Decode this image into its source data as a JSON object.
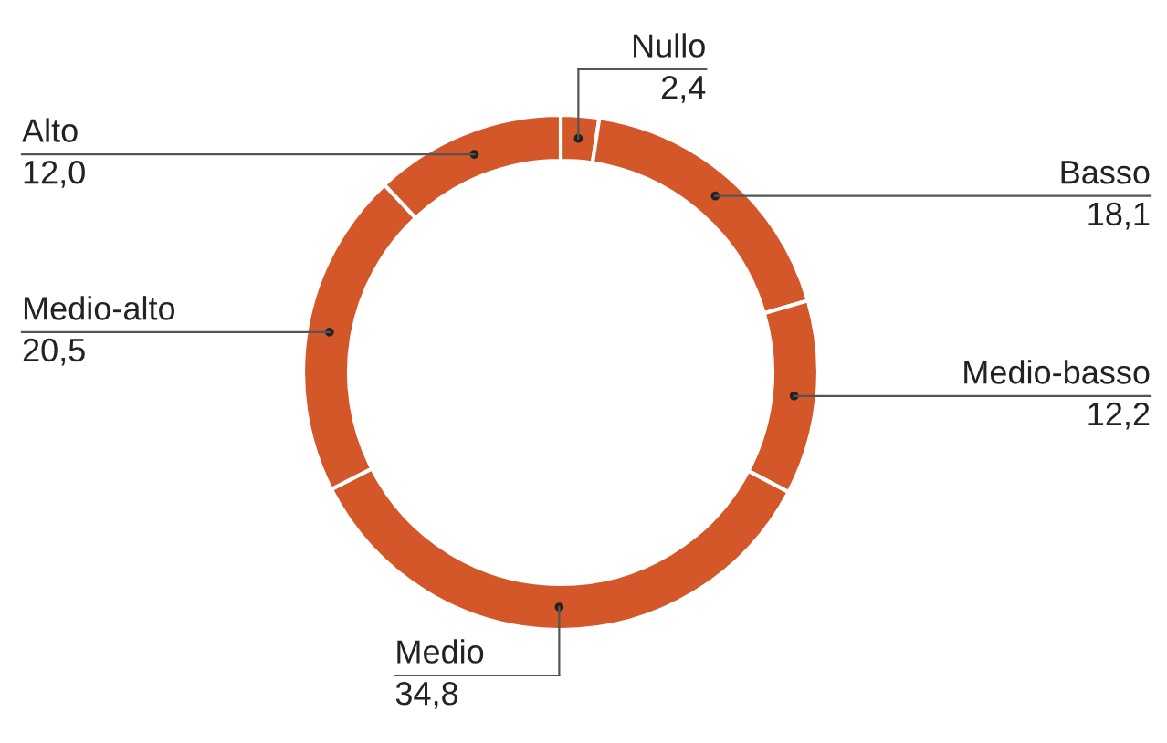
{
  "chart_data": {
    "type": "donut",
    "categories": [
      "Nullo",
      "Basso",
      "Medio-basso",
      "Medio",
      "Medio-alto",
      "Alto"
    ],
    "values": [
      2.4,
      18.1,
      12.2,
      34.8,
      20.5,
      12.0
    ],
    "value_labels": [
      "2,4",
      "18,1",
      "12,2",
      "34,8",
      "20,5",
      "12,0"
    ],
    "colors": [
      "#d4572a",
      "#d4572a",
      "#d4572a",
      "#d4572a",
      "#d4572a",
      "#d4572a"
    ],
    "legend": false
  }
}
